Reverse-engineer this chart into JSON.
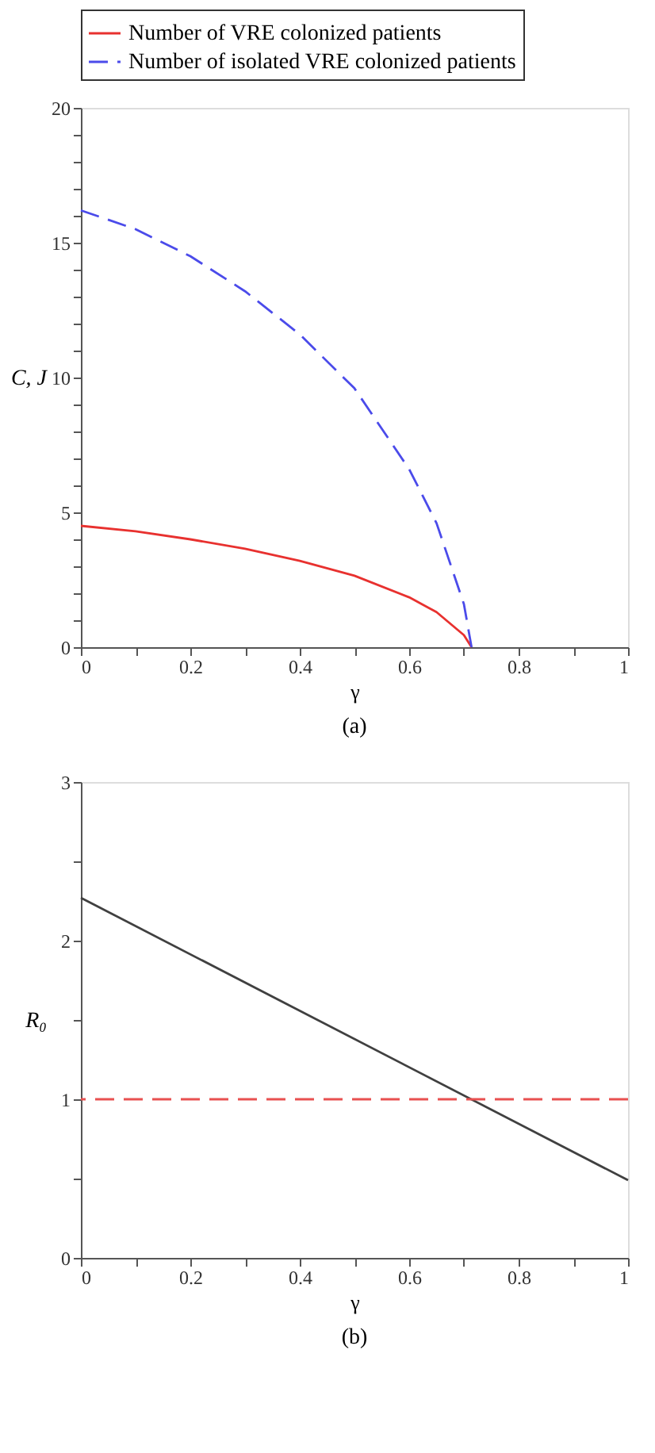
{
  "chart_data": [
    {
      "type": "line",
      "xlabel": "γ",
      "ylabel": "C, J",
      "annotations": [
        "(a)"
      ],
      "legend": "top",
      "grid": false,
      "xlim": [
        0,
        1
      ],
      "ylim": [
        0,
        20
      ],
      "xticks": [
        0,
        {
          "value": 0.1,
          "label": null
        },
        0.2,
        {
          "value": 0.3,
          "label": null
        },
        0.4,
        {
          "value": 0.5,
          "label": null
        },
        0.6,
        {
          "value": 0.7,
          "label": null
        },
        0.8,
        {
          "value": 0.9,
          "label": null
        },
        1
      ],
      "yticks": [
        0,
        {
          "value": 1,
          "label": null
        },
        {
          "value": 2,
          "label": null
        },
        {
          "value": 3,
          "label": null
        },
        {
          "value": 4,
          "label": null
        },
        5,
        {
          "value": 6,
          "label": null
        },
        {
          "value": 7,
          "label": null
        },
        {
          "value": 8,
          "label": null
        },
        {
          "value": 9,
          "label": null
        },
        10,
        {
          "value": 11,
          "label": null
        },
        {
          "value": 12,
          "label": null
        },
        {
          "value": 13,
          "label": null
        },
        {
          "value": 14,
          "label": null
        },
        15,
        {
          "value": 16,
          "label": null
        },
        {
          "value": 17,
          "label": null
        },
        {
          "value": 18,
          "label": null
        },
        {
          "value": 19,
          "label": null
        },
        20
      ],
      "series": [
        {
          "name": "Number of VRE colonized patients",
          "color": "#e8312f",
          "line_style": "solid",
          "x": [
            0,
            0.1,
            0.2,
            0.3,
            0.4,
            0.5,
            0.6,
            0.65,
            0.7,
            0.714
          ],
          "values": [
            4.5,
            4.3,
            4.0,
            3.65,
            3.2,
            2.65,
            1.85,
            1.3,
            0.45,
            0
          ]
        },
        {
          "name": "Number of isolated VRE colonized patients",
          "color": "#4b4bea",
          "line_style": "dashed",
          "x": [
            0,
            0.1,
            0.2,
            0.3,
            0.4,
            0.5,
            0.6,
            0.65,
            0.7,
            0.714
          ],
          "values": [
            16.2,
            15.5,
            14.5,
            13.2,
            11.6,
            9.6,
            6.6,
            4.6,
            1.6,
            0
          ]
        }
      ]
    },
    {
      "type": "line",
      "xlabel": "γ",
      "ylabel": "R₀",
      "annotations": [
        "(b)"
      ],
      "grid": false,
      "xlim": [
        0,
        1
      ],
      "ylim": [
        0,
        3
      ],
      "xticks": [
        0,
        {
          "value": 0.1,
          "label": null
        },
        0.2,
        {
          "value": 0.3,
          "label": null
        },
        0.4,
        {
          "value": 0.5,
          "label": null
        },
        0.6,
        {
          "value": 0.7,
          "label": null
        },
        0.8,
        {
          "value": 0.9,
          "label": null
        },
        1
      ],
      "yticks": [
        0,
        {
          "value": 0.5,
          "label": null
        },
        1,
        {
          "value": 1.5,
          "label": null
        },
        2,
        {
          "value": 2.5,
          "label": null
        },
        3
      ],
      "series": [
        {
          "color": "#404040",
          "line_style": "solid",
          "x": [
            0,
            1
          ],
          "values": [
            2.27,
            0.49
          ]
        }
      ],
      "ref_lines": [
        {
          "axis": "y",
          "value": 1,
          "color": "#e85050",
          "line_style": "dashed"
        }
      ]
    }
  ]
}
